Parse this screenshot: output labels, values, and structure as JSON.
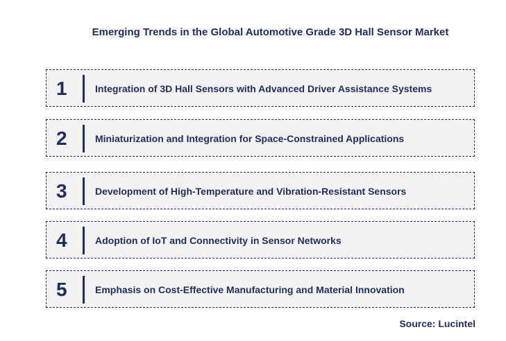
{
  "title": "Emerging Trends in the Global Automotive Grade 3D Hall Sensor Market",
  "items": [
    {
      "number": "1",
      "text": "Integration of 3D Hall Sensors with Advanced Driver Assistance Systems"
    },
    {
      "number": "2",
      "text": "Miniaturization and Integration for Space-Constrained Applications"
    },
    {
      "number": "3",
      "text": "Development of High-Temperature and Vibration-Resistant Sensors"
    },
    {
      "number": "4",
      "text": "Adoption of IoT and Connectivity in Sensor Networks"
    },
    {
      "number": "5",
      "text": "Emphasis on Cost-Effective Manufacturing and Material Innovation"
    }
  ],
  "source": "Source: Lucintel"
}
